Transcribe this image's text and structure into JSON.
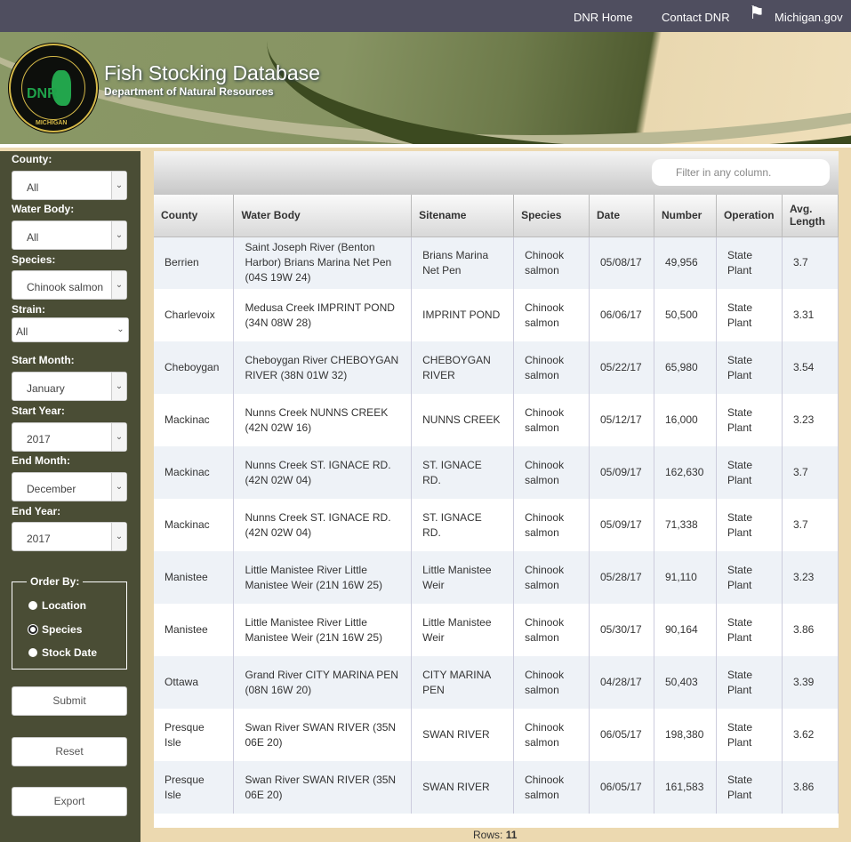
{
  "topnav": [
    "DNR Home",
    "Contact DNR",
    "Michigan.gov"
  ],
  "header": {
    "title": "Fish Stocking Database",
    "subtitle": "Department of Natural Resources",
    "seal_text": "DEPARTMENT OF NATURAL RESOURCES · MICHIGAN · DNR"
  },
  "filters": {
    "county": {
      "label": "County:",
      "value": "All"
    },
    "water_body": {
      "label": "Water Body:",
      "value": "All"
    },
    "species": {
      "label": "Species:",
      "value": "Chinook salmon"
    },
    "strain": {
      "label": "Strain:",
      "value": "All"
    },
    "start_month": {
      "label": "Start Month:",
      "value": "January"
    },
    "start_year": {
      "label": "Start Year:",
      "value": "2017"
    },
    "end_month": {
      "label": "End Month:",
      "value": "December"
    },
    "end_year": {
      "label": "End Year:",
      "value": "2017"
    }
  },
  "order_by": {
    "label": "Order By:",
    "options": [
      "Location",
      "Species",
      "Stock Date"
    ],
    "selected": "Species"
  },
  "buttons": {
    "submit": "Submit",
    "reset": "Reset",
    "export": "Export"
  },
  "search": {
    "placeholder": "Filter in any column."
  },
  "table": {
    "columns": [
      "County",
      "Water Body",
      "Sitename",
      "Species",
      "Date",
      "Number",
      "Operation",
      "Avg. Length"
    ],
    "rows": [
      [
        "Berrien",
        "Saint Joseph River (Benton Harbor) Brians Marina Net Pen (04S 19W 24)",
        "Brians Marina Net Pen",
        "Chinook salmon",
        "05/08/17",
        "49,956",
        "State Plant",
        "3.7"
      ],
      [
        "Charlevoix",
        "Medusa Creek IMPRINT POND (34N 08W 28)",
        "IMPRINT POND",
        "Chinook salmon",
        "06/06/17",
        "50,500",
        "State Plant",
        "3.31"
      ],
      [
        "Cheboygan",
        "Cheboygan River CHEBOYGAN RIVER (38N 01W 32)",
        "CHEBOYGAN RIVER",
        "Chinook salmon",
        "05/22/17",
        "65,980",
        "State Plant",
        "3.54"
      ],
      [
        "Mackinac",
        "Nunns Creek NUNNS CREEK (42N 02W 16)",
        "NUNNS CREEK",
        "Chinook salmon",
        "05/12/17",
        "16,000",
        "State Plant",
        "3.23"
      ],
      [
        "Mackinac",
        "Nunns Creek ST. IGNACE RD. (42N 02W 04)",
        "ST. IGNACE RD.",
        "Chinook salmon",
        "05/09/17",
        "162,630",
        "State Plant",
        "3.7"
      ],
      [
        "Mackinac",
        "Nunns Creek ST. IGNACE RD. (42N 02W 04)",
        "ST. IGNACE RD.",
        "Chinook salmon",
        "05/09/17",
        "71,338",
        "State Plant",
        "3.7"
      ],
      [
        "Manistee",
        "Little Manistee River Little Manistee Weir (21N 16W 25)",
        "Little Manistee Weir",
        "Chinook salmon",
        "05/28/17",
        "91,110",
        "State Plant",
        "3.23"
      ],
      [
        "Manistee",
        "Little Manistee River Little Manistee Weir (21N 16W 25)",
        "Little Manistee Weir",
        "Chinook salmon",
        "05/30/17",
        "90,164",
        "State Plant",
        "3.86"
      ],
      [
        "Ottawa",
        "Grand River CITY MARINA PEN (08N 16W 20)",
        "CITY MARINA PEN",
        "Chinook salmon",
        "04/28/17",
        "50,403",
        "State Plant",
        "3.39"
      ],
      [
        "Presque Isle",
        "Swan River SWAN RIVER (35N 06E 20)",
        "SWAN RIVER",
        "Chinook salmon",
        "06/05/17",
        "198,380",
        "State Plant",
        "3.62"
      ],
      [
        "Presque Isle",
        "Swan River SWAN RIVER (35N 06E 20)",
        "SWAN RIVER",
        "Chinook salmon",
        "06/05/17",
        "161,583",
        "State Plant",
        "3.86"
      ]
    ]
  },
  "footer": {
    "rows_label": "Rows:",
    "rows_count": "11"
  },
  "colors": {
    "topbar": "#4f4e5f",
    "sidebar": "#4a4d35",
    "background": "#ecd9b0",
    "row_alt": "#eef2f7"
  }
}
